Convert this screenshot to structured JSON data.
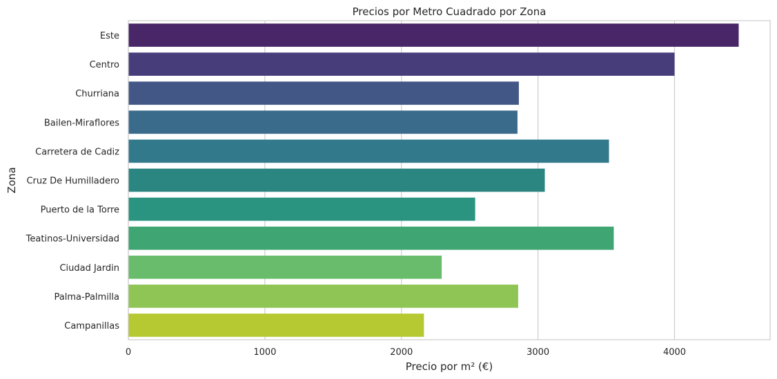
{
  "chart_data": {
    "type": "bar",
    "orientation": "horizontal",
    "title": "Precios por Metro Cuadrado por Zona",
    "xlabel": "Precio por m² (€)",
    "ylabel": "Zona",
    "xlim": [
      0,
      4700
    ],
    "xticks": [
      0,
      1000,
      2000,
      3000,
      4000
    ],
    "grid": true,
    "categories": [
      "Este",
      "Centro",
      "Churriana",
      "Bailen-Miraflores",
      "Carretera de Cadiz",
      "Cruz De Humilladero",
      "Puerto de la Torre",
      "Teatinos-Universidad",
      "Ciudad Jardin",
      "Palma-Palmilla",
      "Campanillas"
    ],
    "values": [
      4470,
      4000,
      2860,
      2850,
      3520,
      3050,
      2540,
      3555,
      2295,
      2855,
      2165
    ],
    "colors": [
      "#482667",
      "#483d7b",
      "#435786",
      "#3b6b8b",
      "#33798c",
      "#2b8581",
      "#2b9480",
      "#3ea573",
      "#69bc6b",
      "#8fc555",
      "#b6c932"
    ]
  }
}
